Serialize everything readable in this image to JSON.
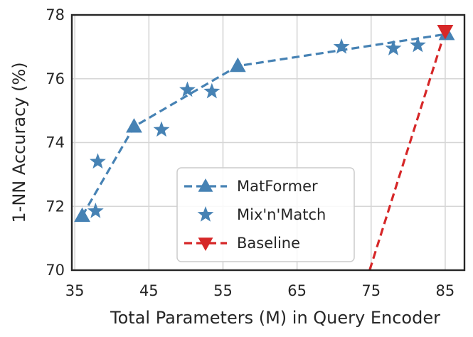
{
  "chart_data": {
    "type": "line",
    "xlabel": "Total Parameters (M) in Query Encoder",
    "ylabel": "1-NN Accuracy (%)",
    "xlim": [
      34.6,
      87.6
    ],
    "ylim": [
      70,
      78
    ],
    "xticks": [
      35,
      45,
      55,
      65,
      75,
      85
    ],
    "yticks": [
      70,
      72,
      74,
      76,
      78
    ],
    "grid": true,
    "legend_position": "lower-center",
    "series": [
      {
        "name": "MatFormer",
        "style": "dashed-line-triangle-up",
        "color": "#4682b4",
        "x": [
          36.0,
          43.0,
          57.0,
          85.2
        ],
        "y": [
          71.7,
          74.5,
          76.4,
          77.4
        ]
      },
      {
        "name": "Mix'n'Match",
        "style": "star-markers",
        "color": "#4682b4",
        "x": [
          37.8,
          38.1,
          46.7,
          50.2,
          53.5,
          71.0,
          78.0,
          81.3
        ],
        "y": [
          71.85,
          73.4,
          74.4,
          75.65,
          75.6,
          77.0,
          76.95,
          77.05
        ]
      },
      {
        "name": "Baseline",
        "style": "dashed-line-triangle-down",
        "color": "#d62728",
        "x": [
          74.8,
          85.0
        ],
        "y": [
          70.0,
          77.5
        ]
      }
    ]
  }
}
